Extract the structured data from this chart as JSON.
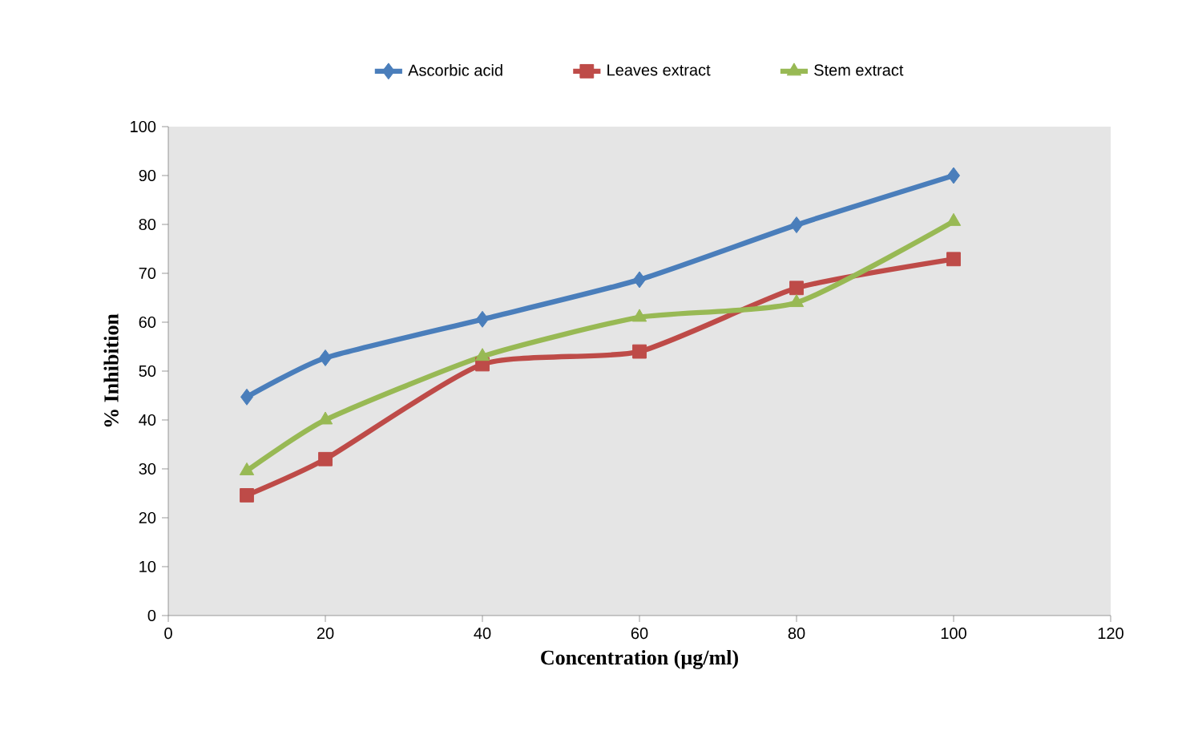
{
  "chart_data": {
    "type": "line",
    "xlabel": "Concentration (µg/ml)",
    "ylabel": "% Inhibition",
    "x": [
      10,
      20,
      40,
      60,
      80,
      100
    ],
    "series": [
      {
        "name": "Ascorbic acid",
        "color": "#4a7ebb",
        "marker": "diamond",
        "values": [
          44.7,
          52.7,
          60.6,
          68.7,
          79.9,
          90.0
        ]
      },
      {
        "name": "Leaves extract",
        "color": "#be4b48",
        "marker": "square",
        "values": [
          24.6,
          32,
          51.4,
          54,
          67,
          72.9
        ]
      },
      {
        "name": "Stem extract",
        "color": "#98b954",
        "marker": "triangle",
        "values": [
          29.6,
          40,
          53,
          61,
          64,
          80.6
        ]
      }
    ],
    "xlim": [
      0,
      120
    ],
    "xticks": [
      0,
      20,
      40,
      60,
      80,
      100,
      120
    ],
    "ylim": [
      0,
      100
    ],
    "yticks": [
      0,
      10,
      20,
      30,
      40,
      50,
      60,
      70,
      80,
      90,
      100
    ],
    "legend": "top",
    "grid": false,
    "line_style": "solid"
  }
}
